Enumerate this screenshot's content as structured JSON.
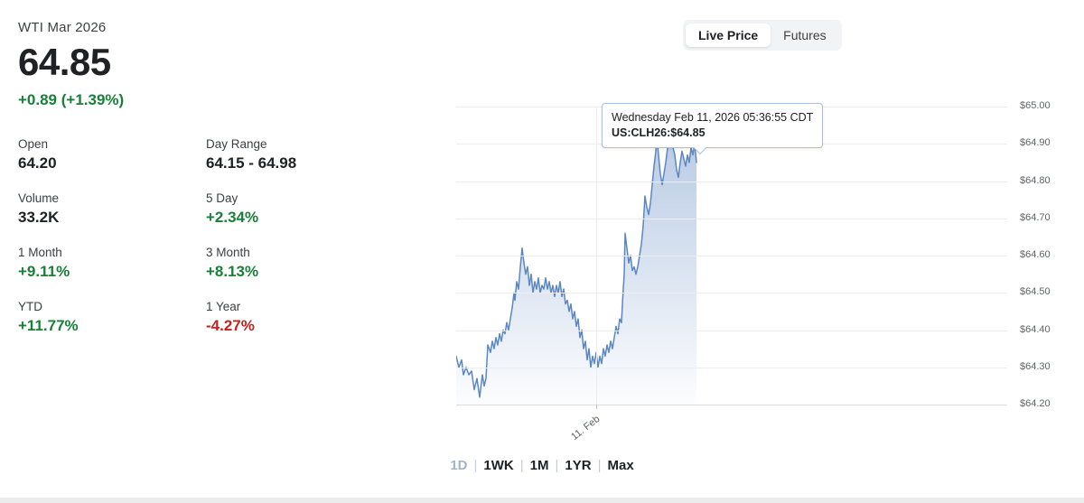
{
  "header": {
    "symbol": "WTI Mar 2026",
    "price": "64.85",
    "change": "+0.89 (+1.39%)"
  },
  "view_toggle": {
    "options": [
      {
        "label": "Live Price",
        "selected": true
      },
      {
        "label": "Futures",
        "selected": false
      }
    ]
  },
  "stats": [
    {
      "label": "Open",
      "value": "64.20",
      "color": "black"
    },
    {
      "label": "Day Range",
      "value": "64.15 - 64.98",
      "color": "black"
    },
    {
      "label": "Volume",
      "value": "33.2K",
      "color": "black"
    },
    {
      "label": "5 Day",
      "value": "+2.34%",
      "color": "green"
    },
    {
      "label": "1 Month",
      "value": "+9.11%",
      "color": "green"
    },
    {
      "label": "3 Month",
      "value": "+8.13%",
      "color": "green"
    },
    {
      "label": "YTD",
      "value": "+11.77%",
      "color": "green"
    },
    {
      "label": "1 Year",
      "value": "-4.27%",
      "color": "red"
    }
  ],
  "tooltip": {
    "line1": "Wednesday Feb 11, 2026 05:36:55 CDT",
    "line2": "US:CLH26:$64.85"
  },
  "range_selector": {
    "options": [
      "1D",
      "1WK",
      "1M",
      "1YR",
      "Max"
    ],
    "selected": "1D",
    "separator": "|"
  },
  "colors": {
    "positive": "#188038",
    "negative": "#c5221f",
    "line_blue": "#5b87c5"
  },
  "chart_data": {
    "type": "area",
    "title": "WTI Mar 2026 intraday price",
    "symbol": "US:CLH26",
    "last_price": 64.85,
    "y_ticks": [
      "$65.00",
      "$64.90",
      "$64.80",
      "$64.70",
      "$64.60",
      "$64.50",
      "$64.40",
      "$64.30",
      "$64.20"
    ],
    "y_max": 65.0,
    "y_min": 64.2,
    "x_ticks": [
      {
        "label": "11. Feb",
        "pos": 0.254
      }
    ],
    "grid": true,
    "line_color": "#5b87c5",
    "fill_top": "rgba(102,140,196,0.50)",
    "fill_bottom": "rgba(102,140,196,0.02)",
    "points": [
      [
        0,
        64.33
      ],
      [
        3,
        64.3
      ],
      [
        6,
        64.32
      ],
      [
        8,
        64.28
      ],
      [
        11,
        64.3
      ],
      [
        14,
        64.28
      ],
      [
        17,
        64.29
      ],
      [
        20,
        64.24
      ],
      [
        23,
        64.27
      ],
      [
        26,
        64.22
      ],
      [
        29,
        64.28
      ],
      [
        31,
        64.25
      ],
      [
        33,
        64.27
      ],
      [
        35,
        64.36
      ],
      [
        38,
        64.34
      ],
      [
        40,
        64.37
      ],
      [
        42,
        64.35
      ],
      [
        44,
        64.38
      ],
      [
        46,
        64.36
      ],
      [
        48,
        64.39
      ],
      [
        50,
        64.37
      ],
      [
        52,
        64.4
      ],
      [
        54,
        64.39
      ],
      [
        56,
        64.42
      ],
      [
        58,
        64.4
      ],
      [
        60,
        64.43
      ],
      [
        62,
        64.46
      ],
      [
        64,
        64.5
      ],
      [
        65,
        64.48
      ],
      [
        67,
        64.53
      ],
      [
        69,
        64.51
      ],
      [
        71,
        64.57
      ],
      [
        73,
        64.62
      ],
      [
        75,
        64.58
      ],
      [
        77,
        64.55
      ],
      [
        79,
        64.57
      ],
      [
        81,
        64.52
      ],
      [
        83,
        64.55
      ],
      [
        85,
        64.5
      ],
      [
        87,
        64.53
      ],
      [
        89,
        64.51
      ],
      [
        91,
        64.54
      ],
      [
        93,
        64.5
      ],
      [
        95,
        64.52
      ],
      [
        97,
        64.51
      ],
      [
        99,
        64.54
      ],
      [
        101,
        64.51
      ],
      [
        103,
        64.53
      ],
      [
        105,
        64.5
      ],
      [
        107,
        64.52
      ],
      [
        109,
        64.49
      ],
      [
        111,
        64.52
      ],
      [
        113,
        64.5
      ],
      [
        115,
        64.53
      ],
      [
        117,
        64.49
      ],
      [
        119,
        64.51
      ],
      [
        121,
        64.47
      ],
      [
        123,
        64.48
      ],
      [
        125,
        64.45
      ],
      [
        127,
        64.47
      ],
      [
        129,
        64.43
      ],
      [
        131,
        64.45
      ],
      [
        133,
        64.41
      ],
      [
        135,
        64.43
      ],
      [
        137,
        64.38
      ],
      [
        139,
        64.4
      ],
      [
        141,
        64.35
      ],
      [
        143,
        64.37
      ],
      [
        145,
        64.32
      ],
      [
        147,
        64.35
      ],
      [
        149,
        64.3
      ],
      [
        151,
        64.33
      ],
      [
        153,
        64.31
      ],
      [
        155,
        64.34
      ],
      [
        157,
        64.3
      ],
      [
        159,
        64.33
      ],
      [
        161,
        64.31
      ],
      [
        163,
        64.35
      ],
      [
        165,
        64.33
      ],
      [
        167,
        64.36
      ],
      [
        169,
        64.34
      ],
      [
        171,
        64.37
      ],
      [
        173,
        64.35
      ],
      [
        175,
        64.38
      ],
      [
        177,
        64.41
      ],
      [
        179,
        64.39
      ],
      [
        181,
        64.43
      ],
      [
        183,
        64.42
      ],
      [
        184,
        64.47
      ],
      [
        186,
        64.55
      ],
      [
        187,
        64.66
      ],
      [
        189,
        64.62
      ],
      [
        191,
        64.58
      ],
      [
        193,
        64.6
      ],
      [
        195,
        64.56
      ],
      [
        197,
        64.57
      ],
      [
        199,
        64.55
      ],
      [
        201,
        64.57
      ],
      [
        203,
        64.6
      ],
      [
        205,
        64.63
      ],
      [
        207,
        64.68
      ],
      [
        208,
        64.72
      ],
      [
        209,
        64.76
      ],
      [
        211,
        64.73
      ],
      [
        213,
        64.71
      ],
      [
        215,
        64.74
      ],
      [
        217,
        64.79
      ],
      [
        219,
        64.84
      ],
      [
        221,
        64.88
      ],
      [
        222,
        64.93
      ],
      [
        224,
        64.87
      ],
      [
        226,
        64.82
      ],
      [
        228,
        64.79
      ],
      [
        230,
        64.82
      ],
      [
        232,
        64.85
      ],
      [
        234,
        64.89
      ],
      [
        236,
        64.95
      ],
      [
        238,
        64.92
      ],
      [
        240,
        64.89
      ],
      [
        242,
        64.87
      ],
      [
        244,
        64.83
      ],
      [
        246,
        64.81
      ],
      [
        248,
        64.85
      ],
      [
        250,
        64.88
      ],
      [
        252,
        64.86
      ],
      [
        254,
        64.84
      ],
      [
        256,
        64.87
      ],
      [
        258,
        64.85
      ],
      [
        260,
        64.89
      ],
      [
        262,
        64.87
      ],
      [
        264,
        64.9
      ],
      [
        266,
        64.85
      ]
    ]
  }
}
